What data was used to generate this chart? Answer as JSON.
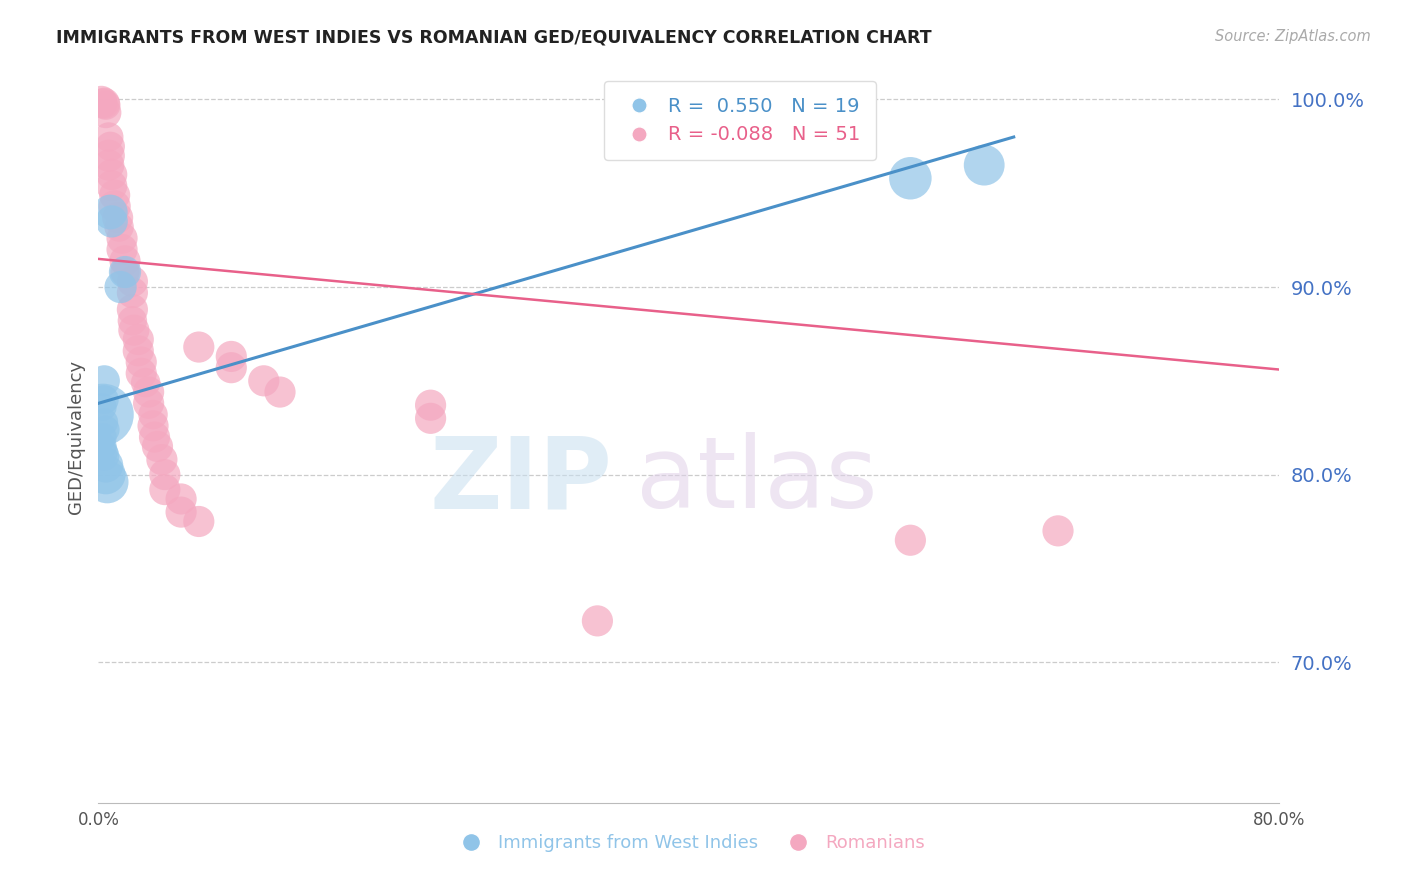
{
  "title": "IMMIGRANTS FROM WEST INDIES VS ROMANIAN GED/EQUIVALENCY CORRELATION CHART",
  "source": "Source: ZipAtlas.com",
  "ylabel": "GED/Equivalency",
  "xmin": 0.0,
  "xmax": 0.8,
  "ymin": 0.625,
  "ymax": 1.015,
  "yticks": [
    0.7,
    0.8,
    0.9,
    1.0
  ],
  "xticks": [
    0.0,
    0.1,
    0.2,
    0.3,
    0.4,
    0.5,
    0.6,
    0.7,
    0.8
  ],
  "xtick_labels": [
    "0.0%",
    "",
    "",
    "",
    "",
    "",
    "",
    "",
    "80.0%"
  ],
  "ytick_labels": [
    "70.0%",
    "80.0%",
    "90.0%",
    "100.0%"
  ],
  "legend_blue_r": "R =  0.550",
  "legend_blue_n": "N = 19",
  "legend_pink_r": "R = -0.088",
  "legend_pink_n": "N = 51",
  "blue_color": "#90c4e8",
  "pink_color": "#f4a8c0",
  "blue_line_color": "#4a90c8",
  "pink_line_color": "#e8608a",
  "blue_scatter_x": [
    0.008,
    0.009,
    0.004,
    0.004,
    0.003,
    0.003,
    0.004,
    0.005,
    0.003,
    0.003,
    0.003,
    0.004,
    0.005,
    0.005,
    0.006,
    0.018,
    0.015,
    0.55,
    0.6
  ],
  "blue_scatter_y": [
    0.94,
    0.935,
    0.85,
    0.84,
    0.836,
    0.832,
    0.828,
    0.824,
    0.82,
    0.815,
    0.812,
    0.81,
    0.805,
    0.8,
    0.796,
    0.908,
    0.9,
    0.958,
    0.965
  ],
  "blue_scatter_size": [
    35,
    30,
    28,
    24,
    22,
    110,
    22,
    22,
    22,
    22,
    26,
    26,
    35,
    45,
    52,
    30,
    30,
    52,
    48
  ],
  "pink_scatter_x": [
    0.002,
    0.004,
    0.003,
    0.005,
    0.005,
    0.007,
    0.008,
    0.007,
    0.007,
    0.009,
    0.009,
    0.011,
    0.011,
    0.013,
    0.014,
    0.016,
    0.016,
    0.018,
    0.018,
    0.023,
    0.023,
    0.023,
    0.023,
    0.024,
    0.027,
    0.027,
    0.029,
    0.029,
    0.032,
    0.034,
    0.034,
    0.037,
    0.037,
    0.038,
    0.04,
    0.043,
    0.045,
    0.045,
    0.056,
    0.056,
    0.068,
    0.068,
    0.09,
    0.09,
    0.112,
    0.123,
    0.225,
    0.225,
    0.338,
    0.55,
    0.65
  ],
  "pink_scatter_y": [
    0.999,
    0.998,
    0.998,
    0.997,
    0.993,
    0.98,
    0.975,
    0.97,
    0.965,
    0.96,
    0.954,
    0.949,
    0.943,
    0.937,
    0.932,
    0.926,
    0.92,
    0.914,
    0.908,
    0.903,
    0.897,
    0.888,
    0.882,
    0.877,
    0.872,
    0.866,
    0.86,
    0.854,
    0.849,
    0.844,
    0.838,
    0.832,
    0.826,
    0.82,
    0.815,
    0.808,
    0.8,
    0.792,
    0.787,
    0.78,
    0.775,
    0.868,
    0.863,
    0.857,
    0.85,
    0.844,
    0.837,
    0.83,
    0.722,
    0.765,
    0.77
  ],
  "pink_scatter_size": [
    28,
    28,
    25,
    25,
    28,
    25,
    25,
    30,
    28,
    28,
    28,
    28,
    30,
    28,
    25,
    28,
    28,
    28,
    25,
    28,
    28,
    28,
    25,
    28,
    28,
    28,
    28,
    28,
    25,
    28,
    28,
    25,
    28,
    28,
    28,
    28,
    28,
    28,
    28,
    28,
    28,
    28,
    28,
    28,
    28,
    28,
    28,
    28,
    28,
    28,
    28
  ]
}
